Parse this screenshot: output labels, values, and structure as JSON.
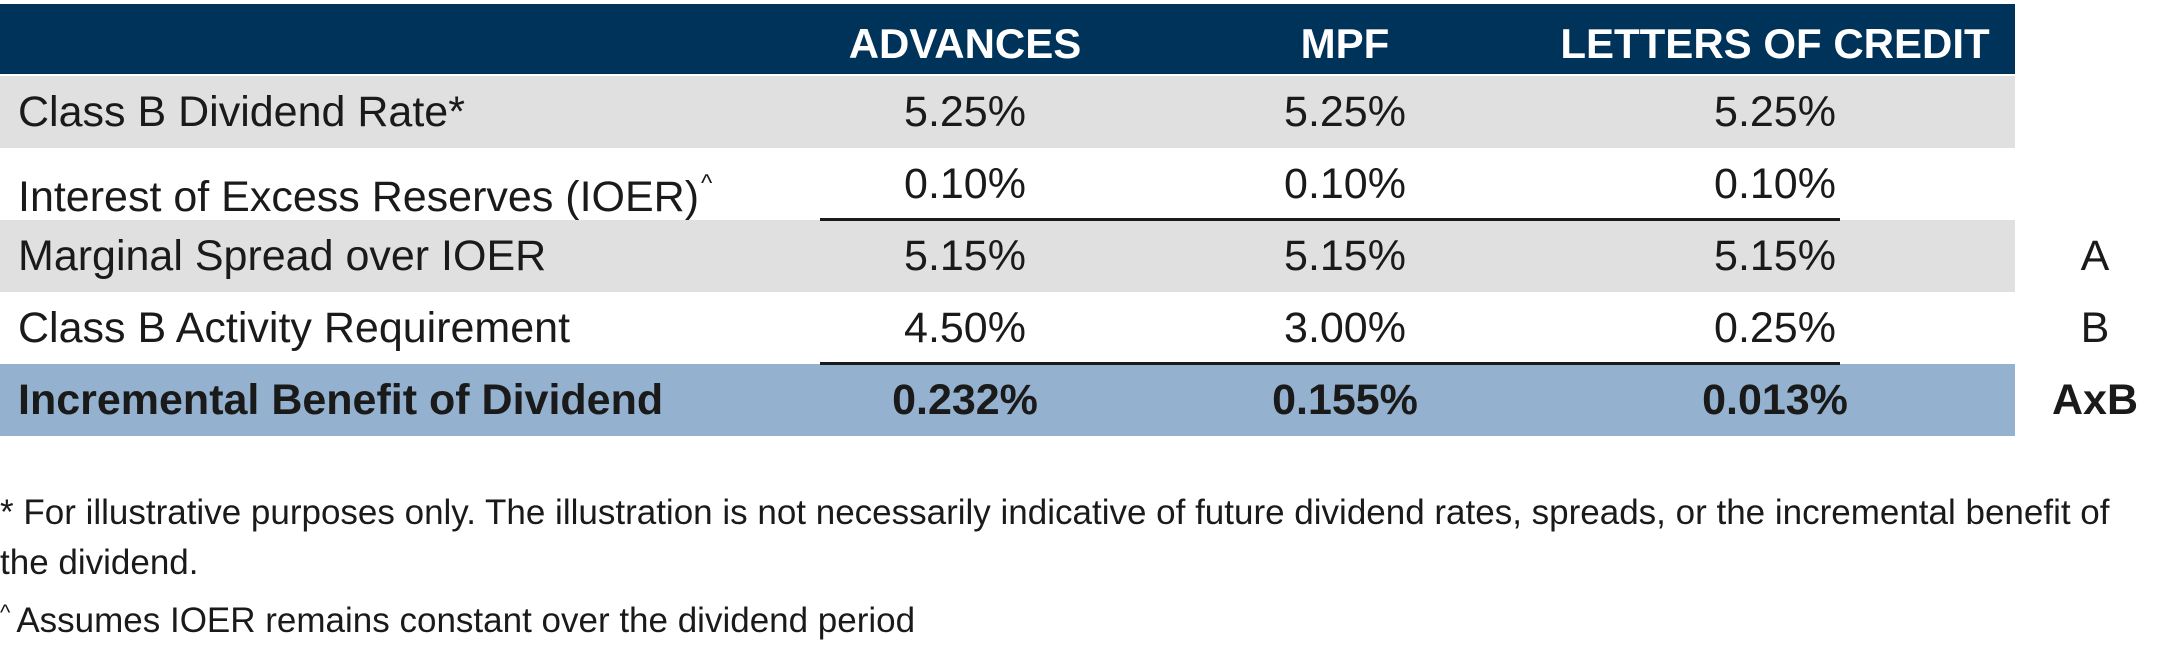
{
  "header": {
    "col1": "ADVANCES",
    "col2": "MPF",
    "col3": "LETTERS OF CREDIT"
  },
  "rows": [
    {
      "label": "Class B Dividend Rate*",
      "values": [
        "5.25%",
        "5.25%",
        "5.25%"
      ],
      "mark": ""
    },
    {
      "label": "Interest of Excess Reserves (IOER)",
      "label_sup": "^",
      "values": [
        "0.10%",
        "0.10%",
        "0.10%"
      ],
      "mark": ""
    },
    {
      "label": "Marginal Spread over IOER",
      "values": [
        "5.15%",
        "5.15%",
        "5.15%"
      ],
      "mark": "A"
    },
    {
      "label": "Class B Activity Requirement",
      "values": [
        "4.50%",
        "3.00%",
        "0.25%"
      ],
      "mark": "B"
    },
    {
      "label": "Incremental Benefit of Dividend",
      "values": [
        "0.232%",
        "0.155%",
        "0.013%"
      ],
      "mark": "AxB"
    }
  ],
  "footnotes": {
    "note1": "* For illustrative purposes only. The illustration is not necessarily indicative of future dividend rates, spreads, or the incremental benefit of the dividend.",
    "note2_mark": "^",
    "note2": "Assumes IOER remains constant over the dividend period"
  },
  "colors": {
    "header_bg": "#003359",
    "stripe_gray": "#e0e0e0",
    "highlight_blue": "#94b2cf"
  }
}
